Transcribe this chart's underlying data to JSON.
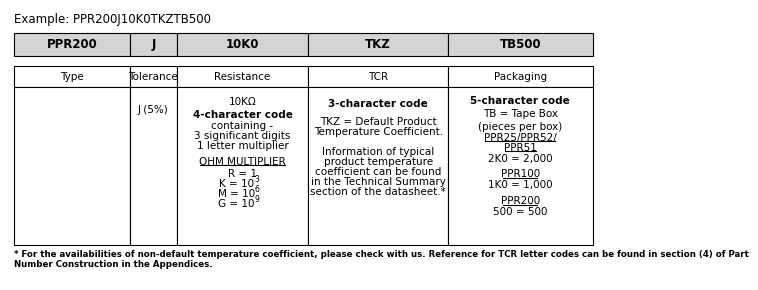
{
  "title": "Example: PPR200J10K0TKZTB500",
  "header_cells": [
    "PPR200",
    "J",
    "10K0",
    "TKZ",
    "TB500"
  ],
  "label_cells": [
    "Type",
    "Tolerance",
    "Resistance",
    "TCR",
    "Packaging"
  ],
  "header_bg": "#d4d4d4",
  "footnote_line1": "* For the availabilities of non-default temperature coefficient, please check with us. Reference for TCR letter codes can be found in section (4) of Part",
  "footnote_line2": "Number Construction in the Appendices."
}
